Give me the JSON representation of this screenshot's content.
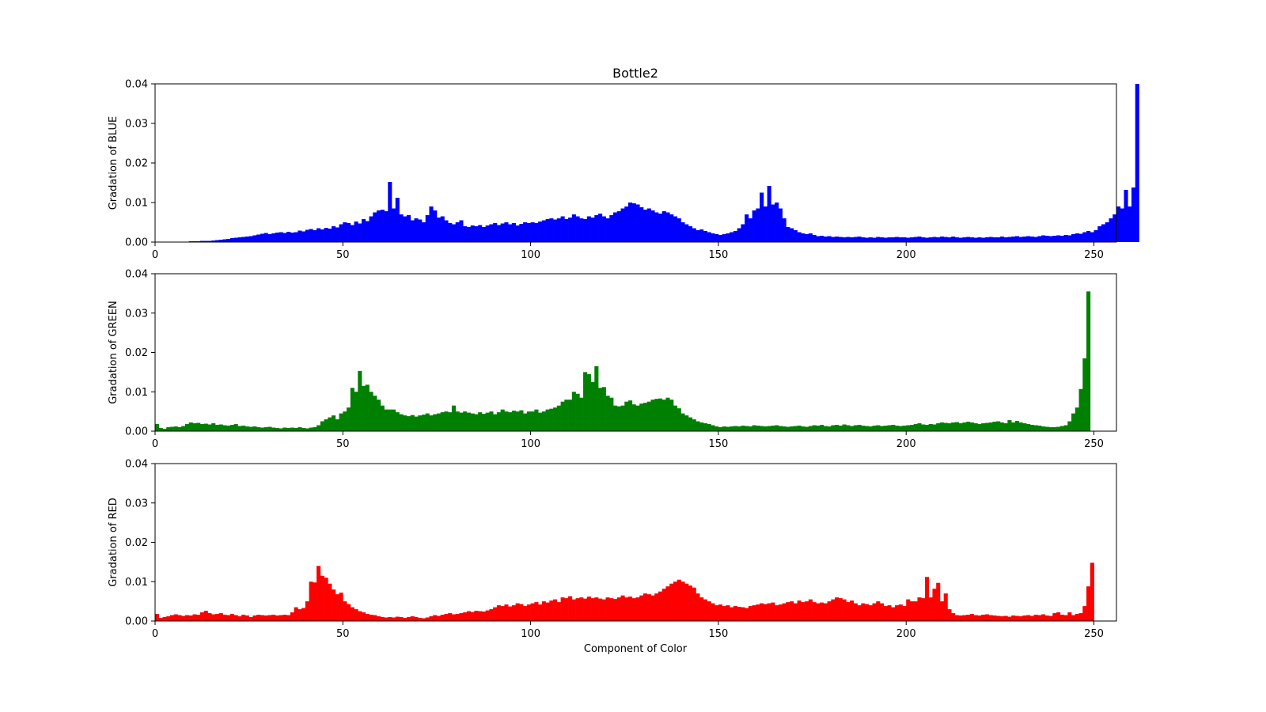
{
  "title": "Bottle2",
  "xlabel": "Component of Color",
  "chart_data": [
    {
      "type": "bar",
      "title": "Bottle2",
      "ylabel": "Gradation of BLUE",
      "xlabel": "",
      "color": "#0000ff",
      "xlim": [
        0,
        256
      ],
      "ylim": [
        0,
        0.04
      ],
      "xticks": [
        "0",
        "50",
        "100",
        "150",
        "200",
        "250"
      ],
      "yticks": [
        "0.00",
        "0.01",
        "0.02",
        "0.03",
        "0.04"
      ],
      "grid": false,
      "x_start": 0,
      "values": [
        0.0001,
        0.0001,
        0.0,
        0.0001,
        0.0001,
        0.0,
        0.0001,
        0.0001,
        0.0001,
        0.0002,
        0.0002,
        0.0002,
        0.0003,
        0.0003,
        0.0003,
        0.0004,
        0.0005,
        0.0006,
        0.0007,
        0.0008,
        0.001,
        0.0011,
        0.0012,
        0.0013,
        0.0014,
        0.0015,
        0.0017,
        0.0019,
        0.0021,
        0.0023,
        0.002,
        0.0022,
        0.0024,
        0.0025,
        0.0023,
        0.0026,
        0.0024,
        0.0025,
        0.0029,
        0.0027,
        0.0031,
        0.0033,
        0.003,
        0.0035,
        0.0032,
        0.0036,
        0.0034,
        0.004,
        0.0037,
        0.0045,
        0.005,
        0.0048,
        0.0043,
        0.0052,
        0.0047,
        0.0058,
        0.0053,
        0.0065,
        0.0075,
        0.008,
        0.0082,
        0.0078,
        0.0152,
        0.0085,
        0.0112,
        0.007,
        0.0065,
        0.0068,
        0.0055,
        0.006,
        0.0057,
        0.005,
        0.0068,
        0.009,
        0.008,
        0.0062,
        0.0065,
        0.0055,
        0.0048,
        0.0045,
        0.005,
        0.0055,
        0.004,
        0.0038,
        0.0042,
        0.004,
        0.0043,
        0.0038,
        0.0042,
        0.0045,
        0.0048,
        0.0043,
        0.0047,
        0.005,
        0.0045,
        0.0048,
        0.0042,
        0.0046,
        0.005,
        0.0048,
        0.005,
        0.0048,
        0.0052,
        0.0055,
        0.0058,
        0.006,
        0.0057,
        0.006,
        0.0065,
        0.0058,
        0.0062,
        0.007,
        0.0065,
        0.006,
        0.0058,
        0.0065,
        0.0062,
        0.0068,
        0.0072,
        0.0065,
        0.006,
        0.0068,
        0.0075,
        0.0078,
        0.0085,
        0.009,
        0.01,
        0.0098,
        0.0095,
        0.0088,
        0.0082,
        0.0085,
        0.008,
        0.0075,
        0.0072,
        0.0078,
        0.0075,
        0.007,
        0.0065,
        0.006,
        0.005,
        0.0045,
        0.004,
        0.0035,
        0.003,
        0.0032,
        0.0028,
        0.0025,
        0.0022,
        0.002,
        0.0018,
        0.002,
        0.0022,
        0.0025,
        0.0028,
        0.0035,
        0.0045,
        0.007,
        0.006,
        0.008,
        0.0085,
        0.0125,
        0.009,
        0.0142,
        0.0095,
        0.01,
        0.0085,
        0.006,
        0.0038,
        0.0035,
        0.003,
        0.0025,
        0.0022,
        0.002,
        0.0022,
        0.0018,
        0.0015,
        0.0016,
        0.0014,
        0.0015,
        0.0013,
        0.0014,
        0.0013,
        0.0012,
        0.0013,
        0.0012,
        0.0013,
        0.0014,
        0.0012,
        0.0011,
        0.0012,
        0.0011,
        0.0013,
        0.0012,
        0.0011,
        0.0012,
        0.0012,
        0.0013,
        0.0012,
        0.0012,
        0.0011,
        0.0012,
        0.0013,
        0.0014,
        0.0012,
        0.0011,
        0.0012,
        0.0013,
        0.0012,
        0.0014,
        0.0013,
        0.0012,
        0.0014,
        0.0012,
        0.0011,
        0.0012,
        0.0013,
        0.0012,
        0.0011,
        0.0012,
        0.0011,
        0.0012,
        0.0013,
        0.0012,
        0.0012,
        0.0014,
        0.0012,
        0.0013,
        0.0014,
        0.0015,
        0.0013,
        0.0014,
        0.0015,
        0.0014,
        0.0013,
        0.0015,
        0.0017,
        0.0016,
        0.0015,
        0.0016,
        0.0017,
        0.0016,
        0.0018,
        0.0017,
        0.002,
        0.0022,
        0.0021,
        0.0025,
        0.0028,
        0.0025,
        0.003,
        0.004,
        0.0045,
        0.005,
        0.006,
        0.007,
        0.009,
        0.0085,
        0.0132,
        0.009,
        0.0138,
        0.04
      ]
    },
    {
      "type": "bar",
      "title": "",
      "ylabel": "Gradation of GREEN",
      "xlabel": "",
      "color": "#008000",
      "xlim": [
        0,
        256
      ],
      "ylim": [
        0,
        0.04
      ],
      "xticks": [
        "0",
        "50",
        "100",
        "150",
        "200",
        "250"
      ],
      "yticks": [
        "0.00",
        "0.01",
        "0.02",
        "0.03",
        "0.04"
      ],
      "grid": false,
      "x_start": 0,
      "values": [
        0.0018,
        0.0008,
        0.0006,
        0.001,
        0.0011,
        0.0012,
        0.001,
        0.0013,
        0.0018,
        0.0022,
        0.002,
        0.0021,
        0.0018,
        0.0019,
        0.0017,
        0.002,
        0.0016,
        0.0017,
        0.0015,
        0.0014,
        0.0016,
        0.0018,
        0.0013,
        0.0014,
        0.0012,
        0.0011,
        0.0012,
        0.001,
        0.0009,
        0.001,
        0.0011,
        0.0009,
        0.0008,
        0.0007,
        0.0009,
        0.0008,
        0.0009,
        0.0008,
        0.001,
        0.0008,
        0.0007,
        0.0009,
        0.001,
        0.0015,
        0.0025,
        0.003,
        0.0035,
        0.004,
        0.003,
        0.0045,
        0.005,
        0.006,
        0.011,
        0.01,
        0.0153,
        0.0115,
        0.0118,
        0.01,
        0.009,
        0.008,
        0.0065,
        0.0055,
        0.0055,
        0.0055,
        0.0048,
        0.0043,
        0.004,
        0.0038,
        0.0041,
        0.0037,
        0.004,
        0.0042,
        0.0045,
        0.004,
        0.0043,
        0.0045,
        0.0048,
        0.005,
        0.0048,
        0.0065,
        0.005,
        0.0047,
        0.005,
        0.0047,
        0.0045,
        0.0043,
        0.0048,
        0.0044,
        0.0047,
        0.005,
        0.0043,
        0.0048,
        0.0055,
        0.005,
        0.0048,
        0.0052,
        0.005,
        0.0053,
        0.0045,
        0.005,
        0.005,
        0.0055,
        0.0047,
        0.005,
        0.0055,
        0.0057,
        0.006,
        0.0065,
        0.0075,
        0.008,
        0.008,
        0.01,
        0.0095,
        0.0085,
        0.015,
        0.0145,
        0.0125,
        0.0165,
        0.011,
        0.0112,
        0.009,
        0.0085,
        0.0065,
        0.0063,
        0.0065,
        0.0075,
        0.0078,
        0.0068,
        0.0065,
        0.007,
        0.0072,
        0.0075,
        0.008,
        0.0082,
        0.0083,
        0.008,
        0.0085,
        0.008,
        0.0065,
        0.0058,
        0.0045,
        0.004,
        0.0035,
        0.003,
        0.0025,
        0.0022,
        0.002,
        0.0018,
        0.0015,
        0.0012,
        0.001,
        0.0012,
        0.0011,
        0.0012,
        0.0013,
        0.0012,
        0.0014,
        0.0013,
        0.0012,
        0.0015,
        0.0014,
        0.0013,
        0.0012,
        0.0013,
        0.0014,
        0.0015,
        0.0013,
        0.0012,
        0.0011,
        0.0012,
        0.0013,
        0.0014,
        0.0012,
        0.0011,
        0.0013,
        0.0015,
        0.0014,
        0.0016,
        0.0013,
        0.0012,
        0.0015,
        0.0016,
        0.0014,
        0.0017,
        0.0015,
        0.0013,
        0.0015,
        0.0016,
        0.0014,
        0.0013,
        0.0012,
        0.0014,
        0.0015,
        0.0013,
        0.0014,
        0.0015,
        0.0016,
        0.0014,
        0.0013,
        0.0014,
        0.0015,
        0.0016,
        0.0018,
        0.002,
        0.0017,
        0.0016,
        0.0018,
        0.0017,
        0.002,
        0.0022,
        0.0021,
        0.002,
        0.0022,
        0.0023,
        0.002,
        0.0022,
        0.0024,
        0.0022,
        0.002,
        0.0018,
        0.002,
        0.0021,
        0.0022,
        0.0024,
        0.0025,
        0.0022,
        0.002,
        0.0028,
        0.0022,
        0.0026,
        0.0022,
        0.002,
        0.0018,
        0.0016,
        0.0015,
        0.0014,
        0.0012,
        0.0011,
        0.001,
        0.001,
        0.0011,
        0.0013,
        0.0015,
        0.0025,
        0.0045,
        0.006,
        0.0107,
        0.0185,
        0.0355
      ]
    },
    {
      "type": "bar",
      "title": "",
      "ylabel": "Gradation of RED",
      "xlabel": "Component of Color",
      "color": "#ff0000",
      "xlim": [
        0,
        256
      ],
      "ylim": [
        0,
        0.04
      ],
      "xticks": [
        "0",
        "50",
        "100",
        "150",
        "200",
        "250"
      ],
      "yticks": [
        "0.00",
        "0.01",
        "0.02",
        "0.03",
        "0.04"
      ],
      "grid": false,
      "x_start": 0,
      "values": [
        0.0018,
        0.0008,
        0.001,
        0.0012,
        0.0015,
        0.0017,
        0.0015,
        0.0013,
        0.0015,
        0.0014,
        0.0017,
        0.0016,
        0.0022,
        0.0026,
        0.002,
        0.0017,
        0.0018,
        0.002,
        0.0016,
        0.0015,
        0.0018,
        0.0015,
        0.0012,
        0.0016,
        0.0014,
        0.001,
        0.0014,
        0.0016,
        0.0015,
        0.0014,
        0.0015,
        0.0016,
        0.0014,
        0.0015,
        0.0016,
        0.0015,
        0.0022,
        0.0035,
        0.003,
        0.0033,
        0.005,
        0.01,
        0.0098,
        0.014,
        0.0115,
        0.011,
        0.0095,
        0.008,
        0.0068,
        0.0072,
        0.005,
        0.0043,
        0.0035,
        0.003,
        0.0025,
        0.0022,
        0.0018,
        0.0016,
        0.0015,
        0.0012,
        0.001,
        0.0009,
        0.001,
        0.0009,
        0.0011,
        0.001,
        0.0008,
        0.001,
        0.0012,
        0.001,
        0.0008,
        0.0007,
        0.0009,
        0.0012,
        0.0015,
        0.0013,
        0.0016,
        0.0018,
        0.002,
        0.0017,
        0.0018,
        0.002,
        0.0022,
        0.0025,
        0.0023,
        0.0026,
        0.0025,
        0.0024,
        0.0027,
        0.003,
        0.0035,
        0.004,
        0.0038,
        0.0042,
        0.0037,
        0.004,
        0.0045,
        0.0043,
        0.0038,
        0.0042,
        0.0045,
        0.0048,
        0.0042,
        0.005,
        0.0047,
        0.0052,
        0.0055,
        0.0048,
        0.006,
        0.0058,
        0.0063,
        0.0055,
        0.0058,
        0.006,
        0.0057,
        0.0062,
        0.0058,
        0.006,
        0.0057,
        0.0055,
        0.006,
        0.0058,
        0.0056,
        0.006,
        0.0065,
        0.006,
        0.0062,
        0.0058,
        0.006,
        0.0065,
        0.007,
        0.0068,
        0.0065,
        0.007,
        0.0075,
        0.0082,
        0.0088,
        0.0095,
        0.01,
        0.0105,
        0.01,
        0.0095,
        0.009,
        0.0085,
        0.007,
        0.006,
        0.0055,
        0.005,
        0.0045,
        0.004,
        0.0042,
        0.0038,
        0.004,
        0.0035,
        0.0038,
        0.0036,
        0.0035,
        0.0033,
        0.0038,
        0.004,
        0.0042,
        0.0045,
        0.0043,
        0.0045,
        0.0047,
        0.004,
        0.0042,
        0.0045,
        0.0048,
        0.005,
        0.0045,
        0.0052,
        0.0048,
        0.005,
        0.0055,
        0.0048,
        0.0045,
        0.0047,
        0.0045,
        0.005,
        0.0055,
        0.006,
        0.0058,
        0.0055,
        0.0048,
        0.0052,
        0.0045,
        0.004,
        0.0045,
        0.0043,
        0.004,
        0.0045,
        0.005,
        0.0045,
        0.0038,
        0.004,
        0.0035,
        0.004,
        0.0042,
        0.0038,
        0.0055,
        0.005,
        0.005,
        0.006,
        0.0058,
        0.0112,
        0.006,
        0.0082,
        0.0097,
        0.005,
        0.007,
        0.003,
        0.002,
        0.0015,
        0.0014,
        0.0015,
        0.0016,
        0.0018,
        0.0015,
        0.0014,
        0.0016,
        0.0017,
        0.0015,
        0.0014,
        0.0013,
        0.0012,
        0.0013,
        0.0011,
        0.0014,
        0.0013,
        0.0012,
        0.0014,
        0.0015,
        0.0013,
        0.0016,
        0.0015,
        0.0017,
        0.0014,
        0.0013,
        0.002,
        0.0022,
        0.0016,
        0.0015,
        0.0022,
        0.0015,
        0.0018,
        0.002,
        0.0038,
        0.0088,
        0.0148
      ]
    }
  ]
}
